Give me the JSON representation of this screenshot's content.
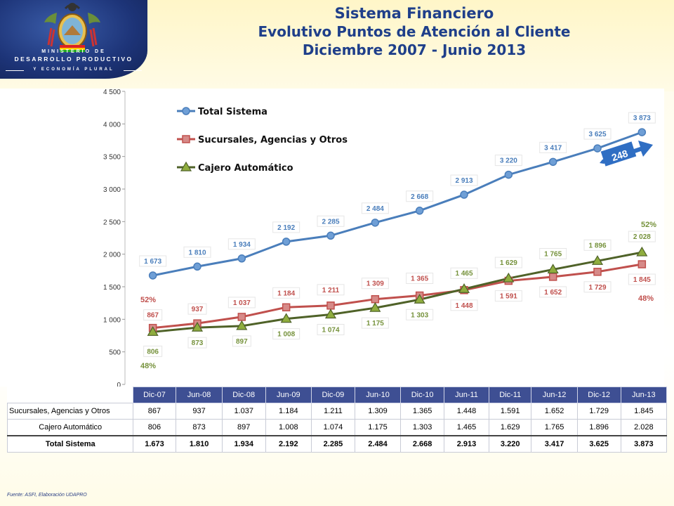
{
  "header": {
    "ministry_line1": "MINISTERIO DE",
    "ministry_line2": "DESARROLLO PRODUCTIVO",
    "ministry_line3": "Y ECONOMÍA PLURAL",
    "title_line1": "Sistema Financiero",
    "title_line2": "Evolutivo Puntos de Atención al Cliente",
    "title_line3": "Diciembre 2007 - Junio 2013"
  },
  "colors": {
    "total": "#4a7ebb",
    "sucursales": "#c0504d",
    "cajero": "#4f6228",
    "cajero_marker": "#8fad3e",
    "arrow": "#2f6ec3"
  },
  "chart_data": {
    "type": "line",
    "categories": [
      "Dic-07",
      "Jun-08",
      "Dic-08",
      "Jun-09",
      "Dic-09",
      "Jun-10",
      "Dic-10",
      "Jun-11",
      "Dic-11",
      "Jun-12",
      "Dic-12",
      "Jun-13"
    ],
    "series": [
      {
        "name": "Total Sistema",
        "values": [
          1673,
          1810,
          1934,
          2192,
          2285,
          2484,
          2668,
          2913,
          3220,
          3417,
          3625,
          3873
        ],
        "labels": [
          "1 673",
          "1 810",
          "1 934",
          "2 192",
          "2 285",
          "2 484",
          "2 668",
          "2 913",
          "3 220",
          "3 417",
          "3 625",
          "3 873"
        ]
      },
      {
        "name": "Sucursales, Agencias y Otros",
        "values": [
          867,
          937,
          1037,
          1184,
          1211,
          1309,
          1365,
          1448,
          1591,
          1652,
          1729,
          1845
        ],
        "labels": [
          "867",
          "937",
          "1 037",
          "1 184",
          "1 211",
          "1 309",
          "1 365",
          "1 448",
          "1 591",
          "1 652",
          "1 729",
          "1 845"
        ]
      },
      {
        "name": "Cajero Automático",
        "values": [
          806,
          873,
          897,
          1008,
          1074,
          1175,
          1303,
          1465,
          1629,
          1765,
          1896,
          2028
        ],
        "labels": [
          "806",
          "873",
          "897",
          "1 008",
          "1 074",
          "1 175",
          "1 303",
          "1 465",
          "1 629",
          "1 765",
          "1 896",
          "2 028"
        ]
      }
    ],
    "ylim": [
      0,
      4500
    ],
    "yticks": [
      0,
      500,
      1000,
      1500,
      2000,
      2500,
      3000,
      3500,
      4000,
      4500
    ],
    "ytick_labels": [
      "0",
      "500",
      "1 000",
      "1 500",
      "2 000",
      "2 500",
      "3 000",
      "3 500",
      "4 000",
      "4 500"
    ],
    "legend_position": "top-left",
    "annotations": {
      "growth_arrow_label": "248",
      "pct_suc_start": "52%",
      "pct_caj_start": "48%",
      "pct_caj_end": "52%",
      "pct_suc_end": "48%"
    }
  },
  "table": {
    "headers": [
      "Dic-07",
      "Jun-08",
      "Dic-08",
      "Jun-09",
      "Dic-09",
      "Jun-10",
      "Dic-10",
      "Jun-11",
      "Dic-11",
      "Jun-12",
      "Dic-12",
      "Jun-13"
    ],
    "rows": [
      {
        "label": "Sucursales, Agencias y Otros",
        "values": [
          "867",
          "937",
          "1.037",
          "1.184",
          "1.211",
          "1.309",
          "1.365",
          "1.448",
          "1.591",
          "1.652",
          "1.729",
          "1.845"
        ]
      },
      {
        "label": "Cajero Automático",
        "values": [
          "806",
          "873",
          "897",
          "1.008",
          "1.074",
          "1.175",
          "1.303",
          "1.465",
          "1.629",
          "1.765",
          "1.896",
          "2.028"
        ]
      }
    ],
    "total": {
      "label": "Total Sistema",
      "values": [
        "1.673",
        "1.810",
        "1.934",
        "2.192",
        "2.285",
        "2.484",
        "2.668",
        "2.913",
        "3.220",
        "3.417",
        "3.625",
        "3.873"
      ]
    }
  },
  "footer": {
    "source": "Fuente: ASFI, Elaboración UDAPRO"
  }
}
